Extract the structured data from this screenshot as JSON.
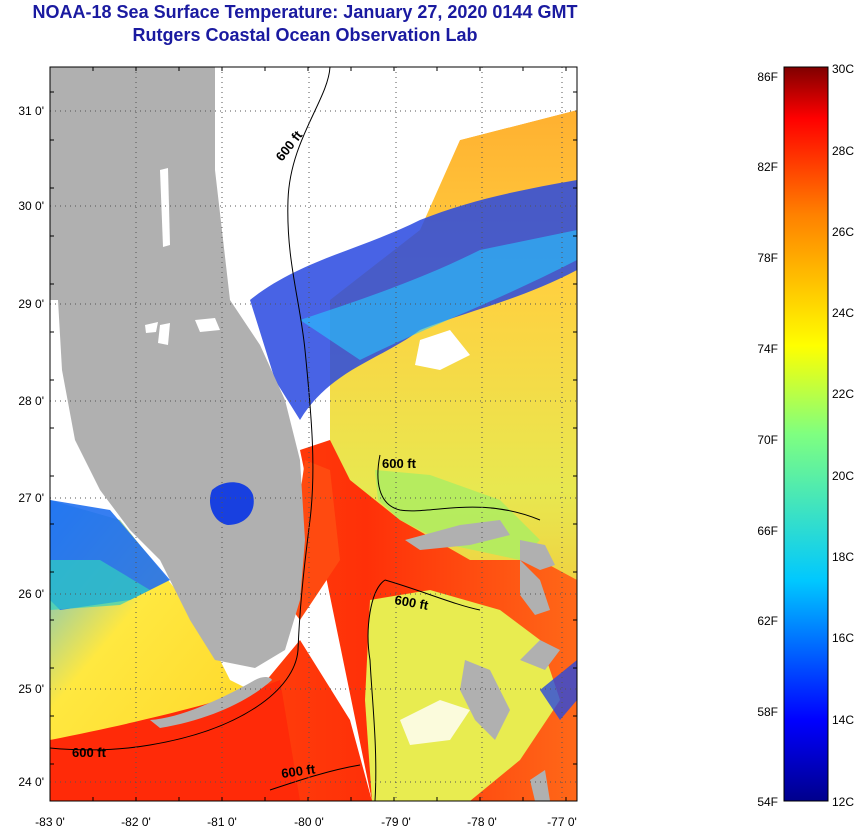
{
  "title": "NOAA-18 Sea Surface Temperature:  January 27, 2020 0144 GMT",
  "subtitle": "Rutgers Coastal Ocean Observation Lab",
  "lat_labels": [
    "31 0'",
    "30 0'",
    "29 0'",
    "28 0'",
    "27 0'",
    "26 0'",
    "25 0'",
    "24 0'"
  ],
  "lon_labels": [
    "-83 0'",
    "-82 0'",
    "-81 0'",
    "-80 0'",
    "-79 0'",
    "-78 0'",
    "-77 0'"
  ],
  "contour_labels": [
    "600 ft",
    "600 ft",
    "600 ft",
    "600 ft",
    "600 ft"
  ],
  "colorbar": {
    "f_labels": [
      "86F",
      "82F",
      "78F",
      "74F",
      "70F",
      "66F",
      "62F",
      "58F",
      "54F"
    ],
    "c_labels": [
      "30C",
      "28C",
      "26C",
      "24C",
      "22C",
      "20C",
      "18C",
      "16C",
      "14C",
      "12C"
    ]
  },
  "colors": {
    "title": "#1a1aa0",
    "land": "#b0b0b0",
    "cloud": "#ffffff"
  }
}
